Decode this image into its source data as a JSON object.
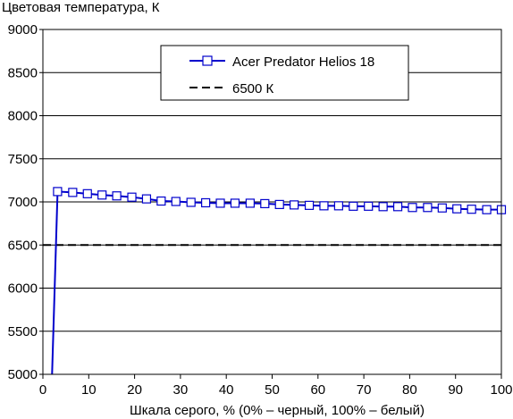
{
  "chart_data": {
    "type": "line",
    "title": "",
    "ylabel": "Цветовая температура, К",
    "xlabel": "Шкала серого, % (0% – черный, 100% – белый)",
    "xlim": [
      0,
      100
    ],
    "ylim": [
      5000,
      9000
    ],
    "x_ticks": [
      0,
      10,
      20,
      30,
      40,
      50,
      60,
      70,
      80,
      90,
      100
    ],
    "y_ticks": [
      5000,
      5500,
      6000,
      6500,
      7000,
      7500,
      8000,
      8500,
      9000
    ],
    "grid": "horizontal",
    "legend_position": "top-right",
    "series": [
      {
        "name": "Acer Predator Helios 18",
        "color": "#0000cc",
        "marker": "square-open",
        "x": [
          2,
          3.2,
          6.5,
          9.7,
          12.9,
          16.1,
          19.4,
          22.6,
          25.8,
          29.0,
          32.3,
          35.5,
          38.7,
          41.9,
          45.2,
          48.4,
          51.6,
          54.8,
          58.1,
          61.3,
          64.5,
          67.7,
          71.0,
          74.2,
          77.4,
          80.6,
          83.9,
          87.1,
          90.3,
          93.5,
          96.8,
          100
        ],
        "y": [
          5000,
          7120,
          7110,
          7095,
          7080,
          7070,
          7055,
          7035,
          7010,
          7005,
          6995,
          6990,
          6985,
          6985,
          6985,
          6980,
          6970,
          6965,
          6960,
          6955,
          6955,
          6950,
          6950,
          6945,
          6945,
          6935,
          6935,
          6930,
          6920,
          6915,
          6910,
          6910
        ],
        "markers_from_index": 1
      },
      {
        "name": "6500 К",
        "color": "#000000",
        "style": "dashed",
        "x": [
          0,
          100
        ],
        "y": [
          6500,
          6500
        ]
      }
    ]
  }
}
